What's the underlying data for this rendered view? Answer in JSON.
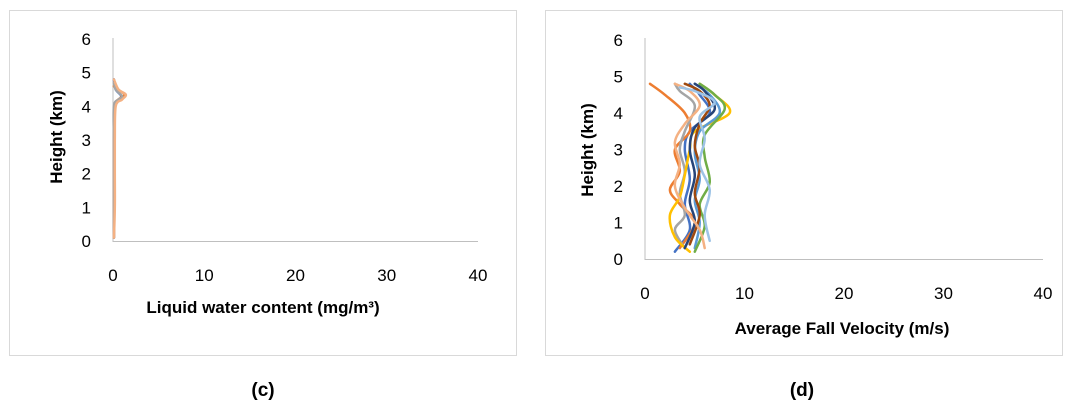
{
  "chart_data": [
    {
      "type": "line",
      "panel_label": "(c)",
      "xlabel": "Liquid water content (mg/m³)",
      "ylabel": "Height (km)",
      "xlim": [
        0,
        40
      ],
      "ylim": [
        0,
        6
      ],
      "xticks": [
        "0",
        "10",
        "20",
        "30",
        "40"
      ],
      "yticks": [
        "0",
        "1",
        "2",
        "3",
        "4",
        "5",
        "6"
      ],
      "grid": false,
      "series": [
        {
          "color": "#4472c4",
          "points": [
            [
              0.1,
              0.1
            ],
            [
              0.1,
              1
            ],
            [
              0.1,
              2
            ],
            [
              0.1,
              3
            ],
            [
              0.1,
              3.9
            ],
            [
              0.4,
              4.1
            ],
            [
              0.9,
              4.3
            ],
            [
              0.3,
              4.5
            ],
            [
              0.1,
              4.8
            ]
          ]
        },
        {
          "color": "#ed7d31",
          "points": [
            [
              0.1,
              0.1
            ],
            [
              0.1,
              1
            ],
            [
              0.1,
              2
            ],
            [
              0.1,
              3
            ],
            [
              0.2,
              4.0
            ],
            [
              0.8,
              4.25
            ],
            [
              1.3,
              4.35
            ],
            [
              0.5,
              4.5
            ],
            [
              0.1,
              4.6
            ]
          ]
        },
        {
          "color": "#a5a5a5",
          "points": [
            [
              0.1,
              0.1
            ],
            [
              0.1,
              1
            ],
            [
              0.1,
              2
            ],
            [
              0.1,
              3
            ],
            [
              0.1,
              4.0
            ],
            [
              0.6,
              4.2
            ],
            [
              1.0,
              4.3
            ],
            [
              0.3,
              4.5
            ],
            [
              0.1,
              4.7
            ]
          ]
        },
        {
          "color": "#f4b183",
          "points": [
            [
              0.1,
              0.1
            ],
            [
              0.2,
              1
            ],
            [
              0.2,
              2
            ],
            [
              0.2,
              3
            ],
            [
              0.3,
              4.0
            ],
            [
              1.0,
              4.2
            ],
            [
              1.4,
              4.35
            ],
            [
              0.6,
              4.5
            ],
            [
              0.1,
              4.8
            ]
          ]
        }
      ]
    },
    {
      "type": "line",
      "panel_label": "(d)",
      "xlabel": "Average Fall Velocity (m/s)",
      "ylabel": "Height (km)",
      "xlim": [
        0,
        40
      ],
      "ylim": [
        0,
        6
      ],
      "xticks": [
        "0",
        "10",
        "20",
        "30",
        "40"
      ],
      "yticks": [
        "0",
        "1",
        "2",
        "3",
        "4",
        "5",
        "6"
      ],
      "grid": false,
      "series": [
        {
          "color": "#4472c4",
          "points": [
            [
              3.0,
              0.2
            ],
            [
              4.5,
              0.8
            ],
            [
              4.0,
              1.5
            ],
            [
              4.5,
              2.2
            ],
            [
              4.0,
              3.0
            ],
            [
              4.5,
              3.5
            ],
            [
              6.5,
              4.0
            ],
            [
              5.5,
              4.5
            ],
            [
              4.5,
              4.8
            ]
          ]
        },
        {
          "color": "#ed7d31",
          "points": [
            [
              3.5,
              0.3
            ],
            [
              5.0,
              1.0
            ],
            [
              3.5,
              1.5
            ],
            [
              2.5,
              1.9
            ],
            [
              3.5,
              2.4
            ],
            [
              3.0,
              3.0
            ],
            [
              4.5,
              3.5
            ],
            [
              4.0,
              4.0
            ],
            [
              2.0,
              4.5
            ],
            [
              0.5,
              4.8
            ]
          ]
        },
        {
          "color": "#a5a5a5",
          "points": [
            [
              4.0,
              0.3
            ],
            [
              3.0,
              0.8
            ],
            [
              4.0,
              1.2
            ],
            [
              3.5,
              1.8
            ],
            [
              4.0,
              2.4
            ],
            [
              3.5,
              3.0
            ],
            [
              4.0,
              3.5
            ],
            [
              5.0,
              4.2
            ],
            [
              3.5,
              4.6
            ],
            [
              3.0,
              4.8
            ]
          ]
        },
        {
          "color": "#ffc000",
          "points": [
            [
              4.5,
              0.2
            ],
            [
              3.0,
              0.6
            ],
            [
              2.5,
              1.2
            ],
            [
              3.5,
              1.7
            ],
            [
              4.0,
              2.3
            ],
            [
              4.5,
              3.0
            ],
            [
              5.0,
              3.5
            ],
            [
              8.5,
              4.0
            ],
            [
              7.0,
              4.5
            ],
            [
              5.5,
              4.8
            ]
          ]
        },
        {
          "color": "#5b9bd5",
          "points": [
            [
              5.0,
              0.3
            ],
            [
              5.5,
              1.0
            ],
            [
              5.0,
              1.6
            ],
            [
              5.5,
              2.2
            ],
            [
              5.0,
              2.9
            ],
            [
              5.5,
              3.5
            ],
            [
              7.5,
              4.0
            ],
            [
              6.5,
              4.5
            ],
            [
              5.0,
              4.8
            ]
          ]
        },
        {
          "color": "#70ad47",
          "points": [
            [
              5.0,
              0.2
            ],
            [
              6.0,
              0.9
            ],
            [
              5.5,
              1.5
            ],
            [
              6.5,
              2.1
            ],
            [
              6.0,
              2.8
            ],
            [
              6.0,
              3.4
            ],
            [
              8.0,
              4.1
            ],
            [
              7.0,
              4.5
            ],
            [
              5.5,
              4.8
            ]
          ]
        },
        {
          "color": "#264478",
          "points": [
            [
              4.0,
              0.3
            ],
            [
              5.0,
              1.0
            ],
            [
              4.5,
              1.6
            ],
            [
              5.0,
              2.3
            ],
            [
              4.5,
              3.0
            ],
            [
              5.0,
              3.6
            ],
            [
              7.0,
              4.1
            ],
            [
              6.0,
              4.6
            ],
            [
              5.0,
              4.8
            ]
          ]
        },
        {
          "color": "#9e480e",
          "points": [
            [
              4.5,
              0.4
            ],
            [
              5.5,
              1.2
            ],
            [
              5.0,
              1.8
            ],
            [
              5.5,
              2.5
            ],
            [
              5.0,
              3.1
            ],
            [
              5.5,
              3.7
            ],
            [
              6.5,
              4.2
            ],
            [
              5.5,
              4.6
            ],
            [
              4.0,
              4.8
            ]
          ]
        },
        {
          "color": "#f4b183",
          "points": [
            [
              6.0,
              0.3
            ],
            [
              5.5,
              0.8
            ],
            [
              4.0,
              1.4
            ],
            [
              3.0,
              2.0
            ],
            [
              3.5,
              2.6
            ],
            [
              3.0,
              3.2
            ],
            [
              4.0,
              3.7
            ],
            [
              5.5,
              4.2
            ],
            [
              4.5,
              4.6
            ],
            [
              3.0,
              4.8
            ]
          ]
        },
        {
          "color": "#9dc3e6",
          "points": [
            [
              6.5,
              0.5
            ],
            [
              6.0,
              1.2
            ],
            [
              6.5,
              1.9
            ],
            [
              5.5,
              2.6
            ],
            [
              6.0,
              3.3
            ],
            [
              5.5,
              3.9
            ],
            [
              7.0,
              4.3
            ],
            [
              5.0,
              4.6
            ],
            [
              3.5,
              4.7
            ]
          ]
        }
      ]
    }
  ]
}
